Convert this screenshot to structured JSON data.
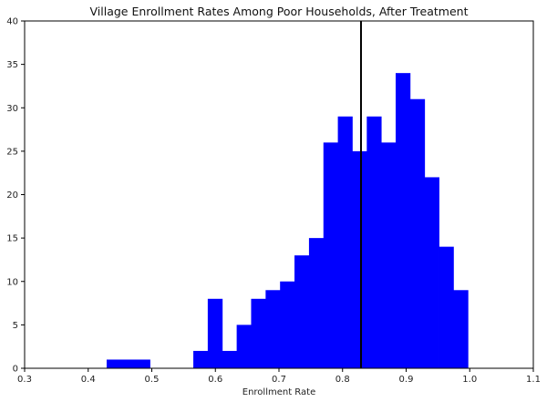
{
  "chart_data": {
    "type": "bar",
    "title": "Village Enrollment Rates Among Poor Households, After Treatment",
    "xlabel": "Enrollment Rate",
    "ylabel": "",
    "xlim": [
      0.3,
      1.1
    ],
    "ylim": [
      0,
      40
    ],
    "xticks": [
      "0.3",
      "0.4",
      "0.5",
      "0.6",
      "0.7",
      "0.8",
      "0.9",
      "1.0",
      "1.1"
    ],
    "yticks": [
      "0",
      "5",
      "10",
      "15",
      "20",
      "25",
      "30",
      "35",
      "40"
    ],
    "grid": false,
    "bar_color": "#0000ff",
    "bins": [
      {
        "x0": 0.429,
        "x1": 0.4517,
        "count": 1
      },
      {
        "x0": 0.4517,
        "x1": 0.4744,
        "count": 1
      },
      {
        "x0": 0.4744,
        "x1": 0.4971,
        "count": 1
      },
      {
        "x0": 0.5653,
        "x1": 0.588,
        "count": 2
      },
      {
        "x0": 0.588,
        "x1": 0.6108,
        "count": 8
      },
      {
        "x0": 0.6108,
        "x1": 0.6335,
        "count": 2
      },
      {
        "x0": 0.6335,
        "x1": 0.6562,
        "count": 5
      },
      {
        "x0": 0.6562,
        "x1": 0.679,
        "count": 8
      },
      {
        "x0": 0.679,
        "x1": 0.7017,
        "count": 9
      },
      {
        "x0": 0.7017,
        "x1": 0.7244,
        "count": 10
      },
      {
        "x0": 0.7244,
        "x1": 0.7472,
        "count": 13
      },
      {
        "x0": 0.7472,
        "x1": 0.7699,
        "count": 15
      },
      {
        "x0": 0.7699,
        "x1": 0.7926,
        "count": 26
      },
      {
        "x0": 0.7926,
        "x1": 0.8153,
        "count": 29
      },
      {
        "x0": 0.8153,
        "x1": 0.8381,
        "count": 25
      },
      {
        "x0": 0.8381,
        "x1": 0.8608,
        "count": 29
      },
      {
        "x0": 0.8608,
        "x1": 0.8835,
        "count": 26
      },
      {
        "x0": 0.8835,
        "x1": 0.9062,
        "count": 34
      },
      {
        "x0": 0.9062,
        "x1": 0.929,
        "count": 31
      },
      {
        "x0": 0.929,
        "x1": 0.9517,
        "count": 22
      },
      {
        "x0": 0.9517,
        "x1": 0.9744,
        "count": 14
      },
      {
        "x0": 0.9744,
        "x1": 0.9972,
        "count": 9
      }
    ],
    "reference_line": {
      "x": 0.829,
      "color": "#000000"
    }
  }
}
